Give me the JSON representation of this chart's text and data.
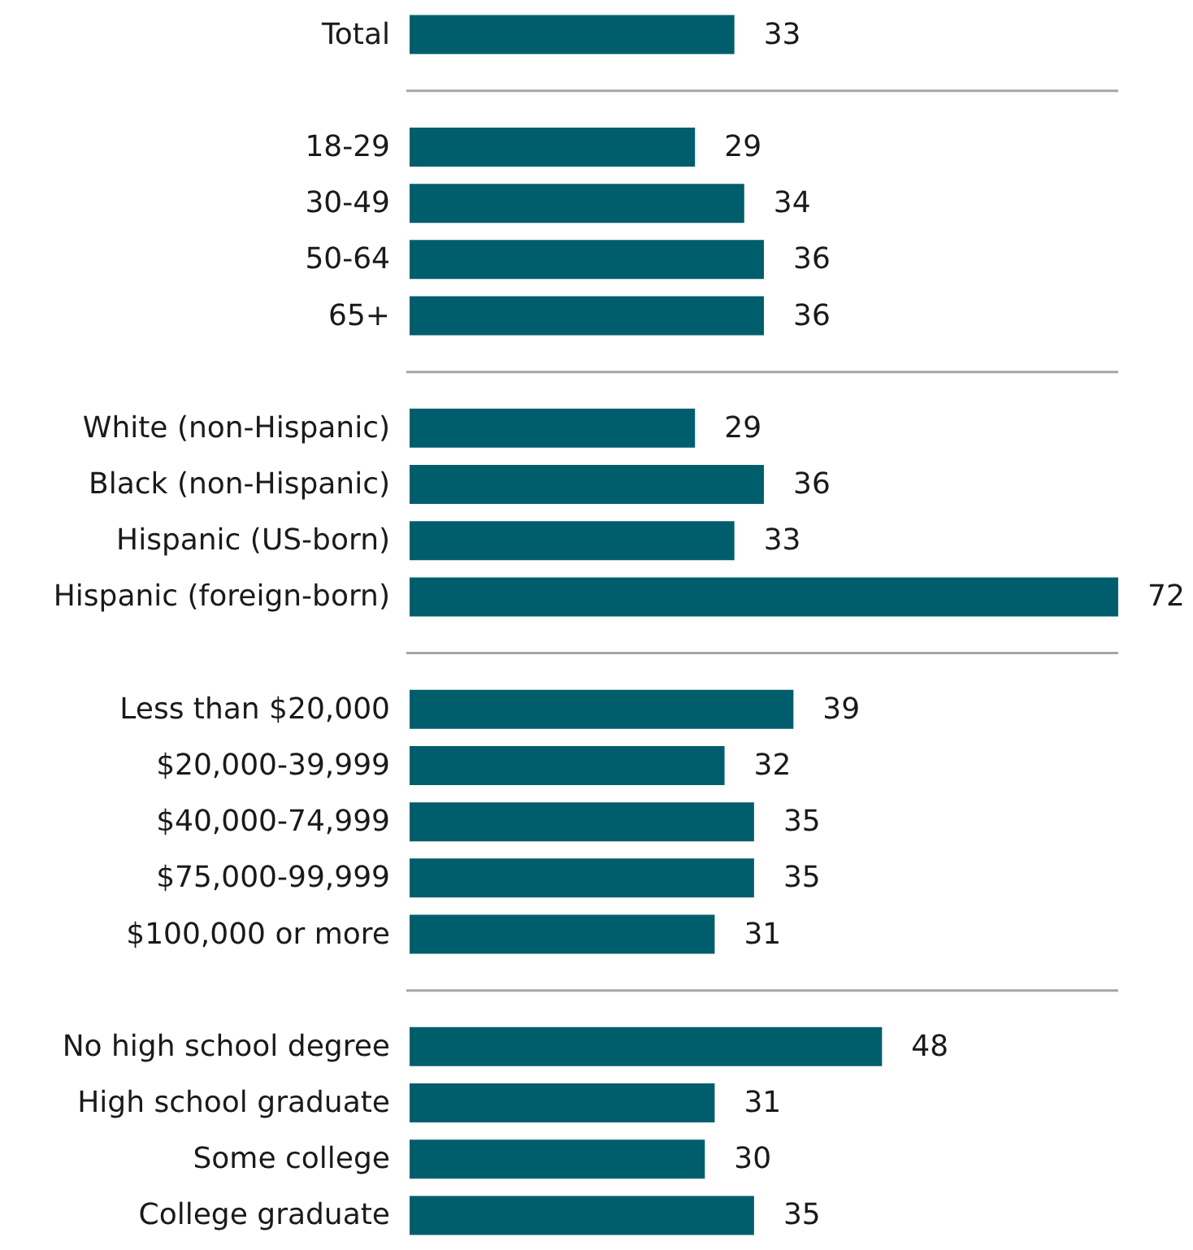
{
  "chart_data": {
    "type": "bar",
    "orientation": "horizontal",
    "data_labels": true,
    "color": "#005e6c",
    "categories": [
      "Total",
      null,
      "18-29",
      "30-49",
      "50-64",
      "65+",
      null,
      "White (non-Hispanic)",
      "Black (non-Hispanic)",
      "Hispanic (US-born)",
      "Hispanic (foreign-born)",
      null,
      "Less than $20,000",
      "$20,000-39,999",
      "$40,000-74,999",
      "$75,000-99,999",
      "$100,000 or more",
      null,
      "No high school degree",
      "High school graduate",
      "Some college",
      "College graduate"
    ],
    "values": [
      33,
      null,
      29,
      34,
      36,
      36,
      null,
      29,
      36,
      33,
      72,
      null,
      39,
      32,
      35,
      35,
      31,
      null,
      48,
      31,
      30,
      35
    ]
  }
}
